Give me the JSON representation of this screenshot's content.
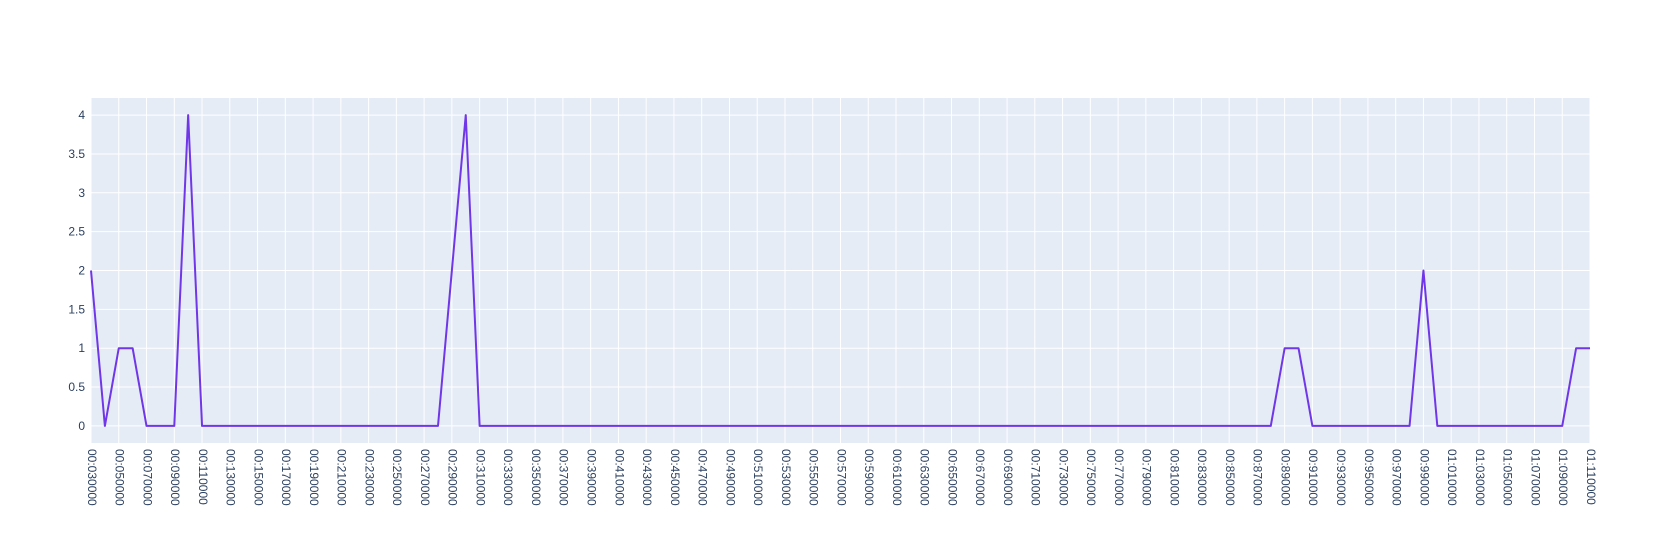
{
  "chart_data": {
    "type": "line",
    "title": "",
    "xlabel": "",
    "ylabel": "",
    "grid": true,
    "colors": {
      "plot_bg": "#e5ecf6",
      "grid": "#ffffff",
      "line": "#7036e8",
      "tick_text": "#2a3f5f"
    },
    "xlim": [
      "00:030000",
      "01:110000"
    ],
    "ylim": [
      -0.22,
      4.22
    ],
    "y_ticks": [
      "0",
      "0.5",
      "1",
      "1.5",
      "2",
      "2.5",
      "3",
      "3.5",
      "4"
    ],
    "x_ticks": [
      "00:030000",
      "00:050000",
      "00:070000",
      "00:090000",
      "00:110000",
      "00:130000",
      "00:150000",
      "00:170000",
      "00:190000",
      "00:210000",
      "00:230000",
      "00:250000",
      "00:270000",
      "00:290000",
      "00:310000",
      "00:330000",
      "00:350000",
      "00:370000",
      "00:390000",
      "00:410000",
      "00:430000",
      "00:450000",
      "00:470000",
      "00:490000",
      "00:510000",
      "00:530000",
      "00:550000",
      "00:570000",
      "00:590000",
      "00:610000",
      "00:630000",
      "00:650000",
      "00:670000",
      "00:690000",
      "00:710000",
      "00:730000",
      "00:750000",
      "00:770000",
      "00:790000",
      "00:810000",
      "00:830000",
      "00:850000",
      "00:870000",
      "00:890000",
      "00:910000",
      "00:930000",
      "00:950000",
      "00:970000",
      "00:990000",
      "01:010000",
      "01:030000",
      "01:050000",
      "01:070000",
      "01:090000",
      "01:110000"
    ],
    "series": [
      {
        "x": [
          "00:030000",
          "00:040000",
          "00:050000",
          "00:060000",
          "00:070000",
          "00:080000",
          "00:090000",
          "00:100000",
          "00:110000",
          "00:120000",
          "00:130000",
          "00:140000",
          "00:150000",
          "00:160000",
          "00:170000",
          "00:180000",
          "00:190000",
          "00:200000",
          "00:210000",
          "00:220000",
          "00:230000",
          "00:240000",
          "00:250000",
          "00:260000",
          "00:270000",
          "00:280000",
          "00:290000",
          "00:300000",
          "00:310000",
          "00:320000",
          "00:330000",
          "00:340000",
          "00:350000",
          "00:360000",
          "00:370000",
          "00:380000",
          "00:390000",
          "00:400000",
          "00:410000",
          "00:420000",
          "00:430000",
          "00:440000",
          "00:450000",
          "00:460000",
          "00:470000",
          "00:480000",
          "00:490000",
          "00:500000",
          "00:510000",
          "00:520000",
          "00:530000",
          "00:540000",
          "00:550000",
          "00:560000",
          "00:570000",
          "00:580000",
          "00:590000",
          "00:600000",
          "00:610000",
          "00:620000",
          "00:630000",
          "00:640000",
          "00:650000",
          "00:660000",
          "00:670000",
          "00:680000",
          "00:690000",
          "00:700000",
          "00:710000",
          "00:720000",
          "00:730000",
          "00:740000",
          "00:750000",
          "00:760000",
          "00:770000",
          "00:780000",
          "00:790000",
          "00:800000",
          "00:810000",
          "00:820000",
          "00:830000",
          "00:840000",
          "00:850000",
          "00:860000",
          "00:870000",
          "00:880000",
          "00:890000",
          "00:900000",
          "00:910000",
          "00:920000",
          "00:930000",
          "00:940000",
          "00:950000",
          "00:960000",
          "00:970000",
          "00:980000",
          "00:990000",
          "01:000000",
          "01:010000",
          "01:020000",
          "01:030000",
          "01:040000",
          "01:050000",
          "01:060000",
          "01:070000",
          "01:080000",
          "01:090000",
          "01:100000",
          "01:110000"
        ],
        "y": [
          2,
          0,
          1,
          1,
          0,
          0,
          0,
          4,
          0,
          0,
          0,
          0,
          0,
          0,
          0,
          0,
          0,
          0,
          0,
          0,
          0,
          0,
          0,
          0,
          0,
          0,
          2,
          4,
          0,
          0,
          0,
          0,
          0,
          0,
          0,
          0,
          0,
          0,
          0,
          0,
          0,
          0,
          0,
          0,
          0,
          0,
          0,
          0,
          0,
          0,
          0,
          0,
          0,
          0,
          0,
          0,
          0,
          0,
          0,
          0,
          0,
          0,
          0,
          0,
          0,
          0,
          0,
          0,
          0,
          0,
          0,
          0,
          0,
          0,
          0,
          0,
          0,
          0,
          0,
          0,
          0,
          0,
          0,
          0,
          0,
          0,
          1,
          1,
          0,
          0,
          0,
          0,
          0,
          0,
          0,
          0,
          2,
          0,
          0,
          0,
          0,
          0,
          0,
          0,
          0,
          0,
          0,
          1,
          1
        ]
      }
    ]
  }
}
